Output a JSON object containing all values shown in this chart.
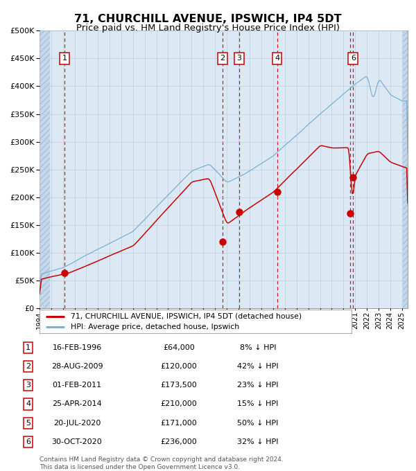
{
  "title": "71, CHURCHILL AVENUE, IPSWICH, IP4 5DT",
  "subtitle": "Price paid vs. HM Land Registry's House Price Index (HPI)",
  "title_fontsize": 11.5,
  "subtitle_fontsize": 9.5,
  "plot_bg_color": "#dce9f5",
  "transactions": [
    {
      "num": 1,
      "price": 64000,
      "x_year": 1996.13
    },
    {
      "num": 2,
      "price": 120000,
      "x_year": 2009.66
    },
    {
      "num": 3,
      "price": 173500,
      "x_year": 2011.08
    },
    {
      "num": 4,
      "price": 210000,
      "x_year": 2014.32
    },
    {
      "num": 5,
      "price": 171000,
      "x_year": 2020.55
    },
    {
      "num": 6,
      "price": 236000,
      "x_year": 2020.83
    }
  ],
  "table_rows": [
    {
      "num": 1,
      "date": "16-FEB-1996",
      "price": "£64,000",
      "hpi": "8% ↓ HPI"
    },
    {
      "num": 2,
      "date": "28-AUG-2009",
      "price": "£120,000",
      "hpi": "42% ↓ HPI"
    },
    {
      "num": 3,
      "date": "01-FEB-2011",
      "price": "£173,500",
      "hpi": "23% ↓ HPI"
    },
    {
      "num": 4,
      "date": "25-APR-2014",
      "price": "£210,000",
      "hpi": "15% ↓ HPI"
    },
    {
      "num": 5,
      "date": "20-JUL-2020",
      "price": "£171,000",
      "hpi": "50% ↓ HPI"
    },
    {
      "num": 6,
      "date": "30-OCT-2020",
      "price": "£236,000",
      "hpi": "32% ↓ HPI"
    }
  ],
  "legend_line1": "71, CHURCHILL AVENUE, IPSWICH, IP4 5DT (detached house)",
  "legend_line2": "HPI: Average price, detached house, Ipswich",
  "footer": "Contains HM Land Registry data © Crown copyright and database right 2024.\nThis data is licensed under the Open Government Licence v3.0.",
  "red_line_color": "#cc0000",
  "blue_line_color": "#7ab0d4",
  "marker_color": "#cc0000",
  "vline_color": "#cc0000",
  "label_box_color": "#cc0000",
  "ylim": [
    0,
    500000
  ],
  "yticks": [
    0,
    50000,
    100000,
    150000,
    200000,
    250000,
    300000,
    350000,
    400000,
    450000,
    500000
  ],
  "xlim_start": 1994.0,
  "xlim_end": 2025.5,
  "label_nums": [
    1,
    2,
    3,
    4,
    6
  ]
}
